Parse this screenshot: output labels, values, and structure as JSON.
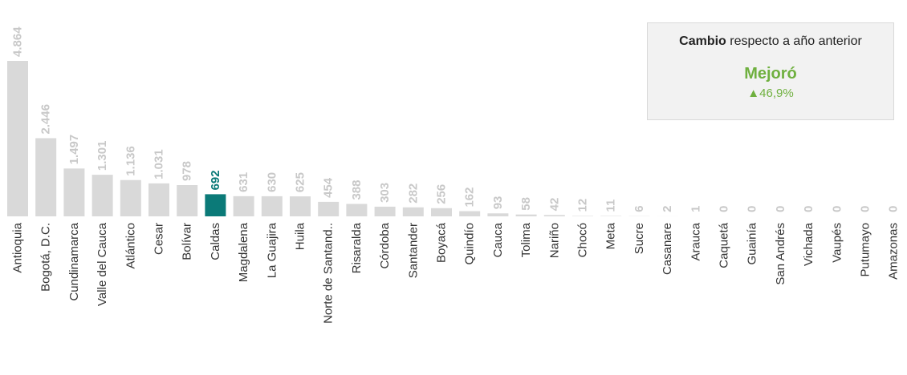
{
  "chart_data": {
    "type": "bar",
    "categories": [
      "Antioquia",
      "Bogotá, D.C.",
      "Cundinamarca",
      "Valle del Cauca",
      "Atlántico",
      "Cesar",
      "Bolívar",
      "Caldas",
      "Magdalena",
      "La Guajira",
      "Huila",
      "Norte de Santand..",
      "Risaralda",
      "Córdoba",
      "Santander",
      "Boyacá",
      "Quindío",
      "Cauca",
      "Tolima",
      "Nariño",
      "Chocó",
      "Meta",
      "Sucre",
      "Casanare",
      "Arauca",
      "Caquetá",
      "Guainía",
      "San Andrés",
      "Vichada",
      "Vaupés",
      "Putumayo",
      "Amazonas"
    ],
    "values": [
      4864,
      2446,
      1497,
      1301,
      1136,
      1031,
      978,
      692,
      631,
      630,
      625,
      454,
      388,
      303,
      282,
      256,
      162,
      93,
      58,
      42,
      12,
      11,
      6,
      2,
      1,
      0,
      0,
      0,
      0,
      0,
      0,
      0
    ],
    "value_labels": [
      "4.864",
      "2.446",
      "1.497",
      "1.301",
      "1.136",
      "1.031",
      "978",
      "692",
      "631",
      "630",
      "625",
      "454",
      "388",
      "303",
      "282",
      "256",
      "162",
      "93",
      "58",
      "42",
      "12",
      "11",
      "6",
      "2",
      "1",
      "0",
      "0",
      "0",
      "0",
      "0",
      "0",
      "0"
    ],
    "highlight_index": 7,
    "colors": {
      "bar": "#d9d9d9",
      "highlight": "#0b7a78",
      "label": "#c8c8c8",
      "highlight_label": "#0b7a78",
      "axis_text": "#333333"
    },
    "ylim": [
      0,
      4864
    ]
  },
  "info_box": {
    "title_bold": "Cambio",
    "title_rest": " respecto a año anterior",
    "status": "Mejoró",
    "change": "▲46,9%",
    "color": "#6fb03f"
  }
}
